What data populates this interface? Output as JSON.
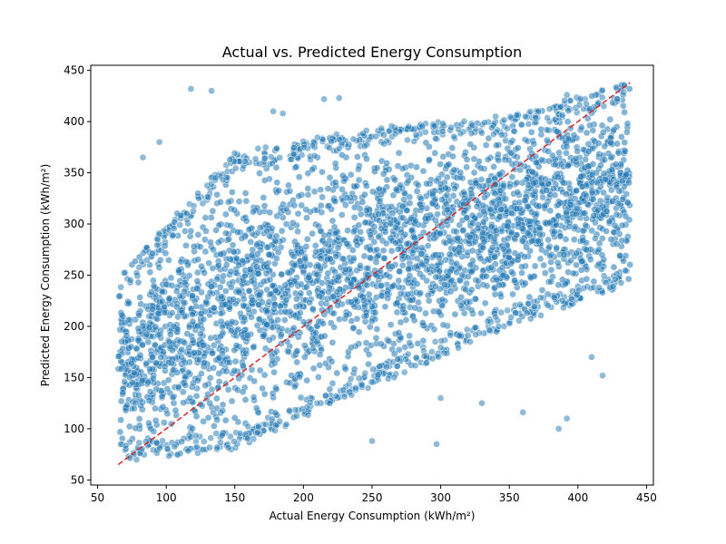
{
  "colors": {
    "points": "#1f77b4",
    "reference_line": "#d62728",
    "axes": "#000000",
    "background": "#ffffff"
  },
  "chart_data": {
    "type": "scatter",
    "title": "Actual vs. Predicted Energy Consumption",
    "xlabel": "Actual Energy Consumption (kWh/m²)",
    "ylabel": "Predicted Energy Consumption (kWh/m²)",
    "xlim": [
      45,
      455
    ],
    "ylim": [
      45,
      455
    ],
    "xticks": [
      50,
      100,
      150,
      200,
      250,
      300,
      350,
      400,
      450
    ],
    "yticks": [
      50,
      100,
      150,
      200,
      250,
      300,
      350,
      400,
      450
    ],
    "grid": false,
    "reference_line": {
      "style": "dashed",
      "points": [
        [
          65,
          65
        ],
        [
          438,
          438
        ]
      ]
    },
    "point_band": {
      "x_range": [
        65,
        438
      ],
      "lower_edge": [
        [
          65,
          68
        ],
        [
          150,
          80
        ],
        [
          250,
          140
        ],
        [
          350,
          200
        ],
        [
          438,
          240
        ]
      ],
      "upper_edge": [
        [
          65,
          250
        ],
        [
          150,
          370
        ],
        [
          250,
          395
        ],
        [
          350,
          405
        ],
        [
          438,
          440
        ]
      ],
      "outliers_above": [
        [
          118,
          432
        ],
        [
          133,
          430
        ],
        [
          215,
          422
        ],
        [
          226,
          423
        ],
        [
          178,
          410
        ],
        [
          185,
          408
        ],
        [
          392,
          426
        ],
        [
          340,
          405
        ],
        [
          95,
          380
        ],
        [
          83,
          365
        ]
      ],
      "outliers_below": [
        [
          297,
          85
        ],
        [
          250,
          88
        ],
        [
          386,
          100
        ],
        [
          392,
          110
        ],
        [
          418,
          152
        ],
        [
          360,
          116
        ],
        [
          330,
          125
        ],
        [
          410,
          170
        ],
        [
          300,
          130
        ]
      ]
    }
  }
}
